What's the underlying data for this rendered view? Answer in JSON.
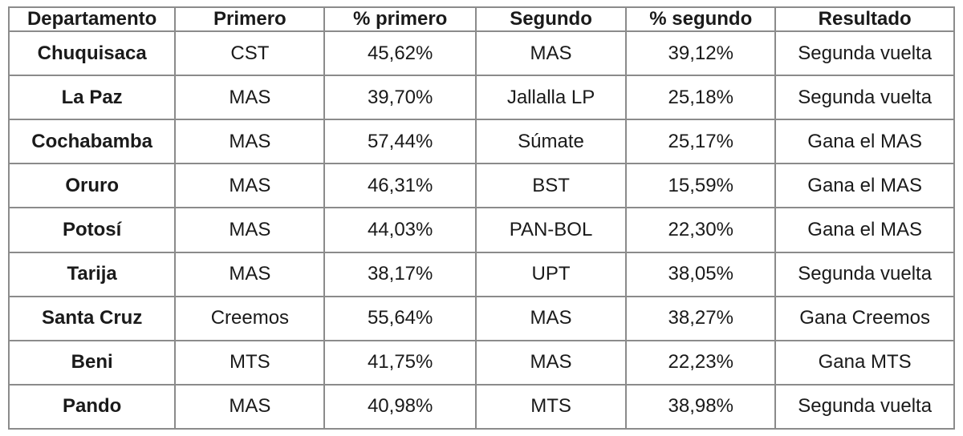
{
  "chart_data": {
    "type": "table",
    "title": "",
    "columns": [
      "Departamento",
      "Primero",
      "% primero",
      "Segundo",
      "% segundo",
      "Resultado"
    ],
    "rows": [
      [
        "Chuquisaca",
        "CST",
        "45,62%",
        "MAS",
        "39,12%",
        "Segunda vuelta"
      ],
      [
        "La Paz",
        "MAS",
        "39,70%",
        "Jallalla LP",
        "25,18%",
        "Segunda vuelta"
      ],
      [
        "Cochabamba",
        "MAS",
        "57,44%",
        "Súmate",
        "25,17%",
        "Gana el MAS"
      ],
      [
        "Oruro",
        "MAS",
        "46,31%",
        "BST",
        "15,59%",
        "Gana el MAS"
      ],
      [
        "Potosí",
        "MAS",
        "44,03%",
        "PAN-BOL",
        "22,30%",
        "Gana el MAS"
      ],
      [
        "Tarija",
        "MAS",
        "38,17%",
        "UPT",
        "38,05%",
        "Segunda vuelta"
      ],
      [
        "Santa Cruz",
        "Creemos",
        "55,64%",
        "MAS",
        "38,27%",
        "Gana Creemos"
      ],
      [
        "Beni",
        "MTS",
        "41,75%",
        "MAS",
        "22,23%",
        "Gana MTS"
      ],
      [
        "Pando",
        "MAS",
        "40,98%",
        "MTS",
        "38,98%",
        "Segunda vuelta"
      ]
    ],
    "layout": {
      "header_bold": true,
      "first_column_bold": true,
      "text_align": "center",
      "grid": "all-borders"
    }
  },
  "colors": {
    "border": "#8b8b8b",
    "text": "#1a1a1a",
    "background": "#ffffff"
  }
}
